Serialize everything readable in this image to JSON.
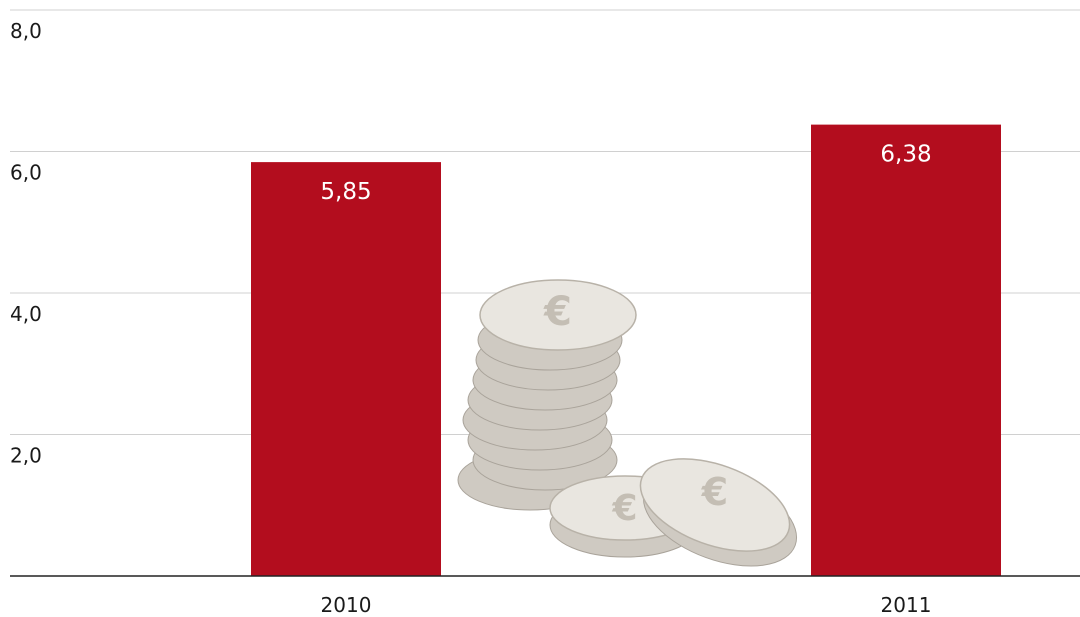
{
  "chart_data": {
    "type": "bar",
    "categories": [
      "2010",
      "2011"
    ],
    "values": [
      5.85,
      6.38
    ],
    "value_labels": [
      "5,85",
      "6,38"
    ],
    "color": "#b30d1e",
    "ylim": [
      0,
      8
    ],
    "yticks": [
      {
        "value": 2,
        "label": "2,0"
      },
      {
        "value": 4,
        "label": "4,0"
      },
      {
        "value": 6,
        "label": "6,0"
      },
      {
        "value": 8,
        "label": "8,0"
      }
    ],
    "grid": true
  }
}
